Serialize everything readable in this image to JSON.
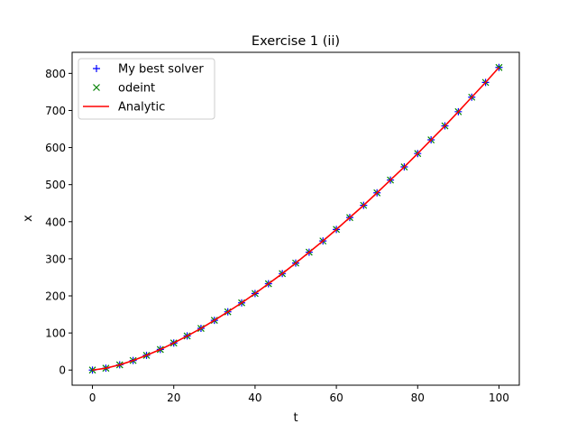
{
  "chart_data": {
    "type": "line",
    "title": "Exercise 1 (ii)",
    "xlabel": "t",
    "ylabel": "x",
    "xlim": [
      -5,
      105
    ],
    "ylim": [
      -40.8,
      856.8
    ],
    "xticks": [
      0,
      20,
      40,
      60,
      80,
      100
    ],
    "yticks": [
      0,
      100,
      200,
      300,
      400,
      500,
      600,
      700,
      800
    ],
    "grid": false,
    "legend_position": "top-left",
    "x": [
      0,
      3.3,
      6.7,
      10,
      13.3,
      16.7,
      20,
      23.3,
      26.7,
      30,
      33.3,
      36.7,
      40,
      43.3,
      46.7,
      50,
      53.3,
      56.7,
      60,
      63.3,
      66.7,
      70,
      73.3,
      76.7,
      80,
      83.3,
      86.7,
      90,
      93.3,
      96.7,
      100
    ],
    "series": [
      {
        "name": "My best solver",
        "marker": "+",
        "color": "#0000ff",
        "values": [
          0,
          5.0,
          14.1,
          25.8,
          39.7,
          55.5,
          73.0,
          92.0,
          112.4,
          134.1,
          157.0,
          181.2,
          206.4,
          232.8,
          260.1,
          288.5,
          317.8,
          348.1,
          379.2,
          411.3,
          444.2,
          477.9,
          512.4,
          547.8,
          583.9,
          620.8,
          658.4,
          696.7,
          735.8,
          775.6,
          816.0
        ]
      },
      {
        "name": "odeint",
        "marker": "x",
        "color": "#008000",
        "values": [
          0,
          5.0,
          14.1,
          25.8,
          39.7,
          55.5,
          73.0,
          92.0,
          112.4,
          134.1,
          157.0,
          181.2,
          206.4,
          232.8,
          260.1,
          288.5,
          317.8,
          348.1,
          379.2,
          411.3,
          444.2,
          477.9,
          512.4,
          547.8,
          583.9,
          620.8,
          658.4,
          696.7,
          735.8,
          775.6,
          816.0
        ]
      },
      {
        "name": "Analytic",
        "marker": "line",
        "color": "#ff0000",
        "values": [
          0,
          5.0,
          14.1,
          25.8,
          39.7,
          55.5,
          73.0,
          92.0,
          112.4,
          134.1,
          157.0,
          181.2,
          206.4,
          232.8,
          260.1,
          288.5,
          317.8,
          348.1,
          379.2,
          411.3,
          444.2,
          477.9,
          512.4,
          547.8,
          583.9,
          620.8,
          658.4,
          696.7,
          735.8,
          775.6,
          816.0
        ]
      }
    ]
  }
}
